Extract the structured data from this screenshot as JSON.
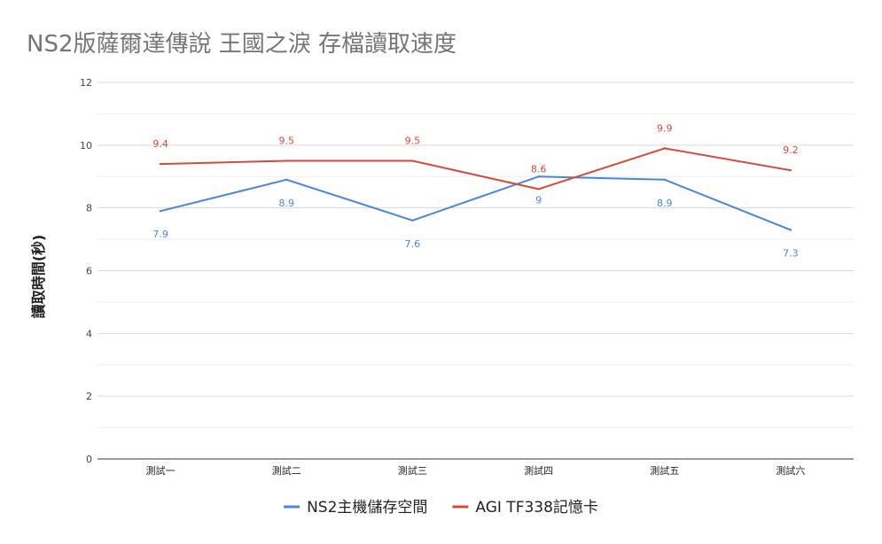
{
  "chart_data": {
    "type": "line",
    "title": "NS2版薩爾達傳說 王國之淚 存檔讀取速度",
    "xlabel": "",
    "ylabel": "讀取時間(秒)",
    "categories": [
      "測試一",
      "測試二",
      "測試三",
      "測試四",
      "測試五",
      "測試六"
    ],
    "ylim": [
      0,
      12
    ],
    "yticks": [
      0,
      2,
      4,
      6,
      8,
      10,
      12
    ],
    "ytick_labels": [
      "0",
      "2",
      "4",
      "6",
      "8",
      "10",
      "12"
    ],
    "grid": true,
    "minor_grid": true,
    "legend_position": "bottom",
    "series": [
      {
        "name": "NS2主機儲存空間",
        "color": "#4a86d8",
        "values": [
          7.9,
          8.9,
          7.6,
          9,
          8.9,
          7.3
        ],
        "labels": [
          "7.9",
          "8.9",
          "7.6",
          "9",
          "8.9",
          "7.3"
        ],
        "label_position": "below"
      },
      {
        "name": "AGI TF338記憶卡",
        "color": "#d64a3b",
        "values": [
          9.4,
          9.5,
          9.5,
          8.6,
          9.9,
          9.2
        ],
        "labels": [
          "9.4",
          "9.5",
          "9.5",
          "8.6",
          "9.9",
          "9.2"
        ],
        "label_position": "above"
      }
    ]
  }
}
